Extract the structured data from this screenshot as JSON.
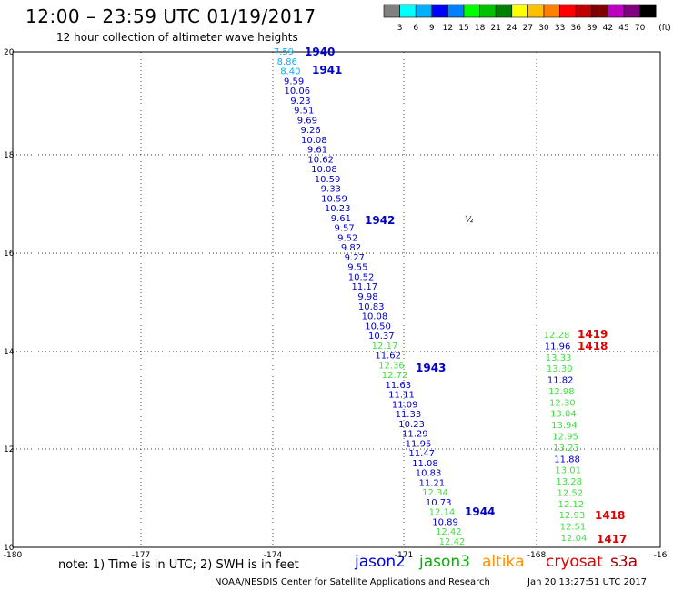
{
  "title": "12:00 – 23:59 UTC 01/19/2017",
  "subtitle": "12 hour collection of altimeter wave heights",
  "colorbar": {
    "colors": [
      "#808080",
      "#00ffff",
      "#00b0ff",
      "#0000ff",
      "#0080ff",
      "#00ff00",
      "#00c000",
      "#008000",
      "#ffff00",
      "#ffc000",
      "#ff8000",
      "#ff0000",
      "#c00000",
      "#800000",
      "#c000c0",
      "#800080",
      "#000000"
    ],
    "labels": [
      "3",
      "6",
      "9",
      "12",
      "15",
      "18",
      "21",
      "24",
      "27",
      "30",
      "33",
      "36",
      "39",
      "42",
      "45",
      "70"
    ],
    "unit": "(ft)"
  },
  "axes": {
    "x_ticks": [
      "-180",
      "-177",
      "-174",
      "-171",
      "-168",
      "-16"
    ],
    "y_ticks": [
      "20",
      "18",
      "16",
      "14",
      "12",
      "10"
    ]
  },
  "map_data": {
    "island_label": "½",
    "tracks": [
      {
        "color": "#00b0ff",
        "values": [
          "7.59",
          "8.86",
          "8.40"
        ]
      },
      {
        "color": "#0000c8",
        "values": [
          "9.59",
          "10.06",
          "9.23",
          "9.51",
          "9.69",
          "9.26",
          "10.08",
          "9.61",
          "10.62",
          "10.08",
          "10.59",
          "9.33",
          "10.59",
          "10.23",
          "9.61",
          "9.57",
          "9.52",
          "9.82",
          "9.27",
          "9.55",
          "10.52",
          "11.17",
          "9.98",
          "10.83",
          "10.08",
          "10.50",
          "10.37"
        ]
      },
      {
        "color": "#40e040",
        "values": [
          "12.17"
        ]
      },
      {
        "color": "#0000c8",
        "values": [
          "11.62"
        ]
      },
      {
        "color": "#40e040",
        "values": [
          "12.36",
          "12.72"
        ]
      },
      {
        "color": "#0000c8",
        "values": [
          "11.63",
          "11.11",
          "11.09",
          "11.33",
          "10.23",
          "11.29",
          "11.95",
          "11.47",
          "11.08",
          "10.83",
          "11.21"
        ]
      },
      {
        "color": "#40e040",
        "values": [
          "12.34"
        ]
      },
      {
        "color": "#0000c8",
        "values": [
          "10.73"
        ]
      },
      {
        "color": "#40e040",
        "values": [
          "12.14"
        ]
      },
      {
        "color": "#0000c8",
        "values": [
          "10.89"
        ]
      },
      {
        "color": "#40e040",
        "values": [
          "12.42",
          "12.42"
        ]
      }
    ],
    "east_track": [
      {
        "value": "12.28",
        "color": "#40e040"
      },
      {
        "value": "11.96",
        "color": "#0000c8"
      },
      {
        "value": "13.33",
        "color": "#40e040"
      },
      {
        "value": "13.30",
        "color": "#40e040"
      },
      {
        "value": "11.82",
        "color": "#0000c8"
      },
      {
        "value": "12.98",
        "color": "#40e040"
      },
      {
        "value": "12.30",
        "color": "#40e040"
      },
      {
        "value": "13.04",
        "color": "#40e040"
      },
      {
        "value": "13.94",
        "color": "#40e040"
      },
      {
        "value": "12.95",
        "color": "#40e040"
      },
      {
        "value": "13.23",
        "color": "#40e040"
      },
      {
        "value": "11.88",
        "color": "#0000c8"
      },
      {
        "value": "13.01",
        "color": "#40e040"
      },
      {
        "value": "13.28",
        "color": "#40e040"
      },
      {
        "value": "12.52",
        "color": "#40e040"
      },
      {
        "value": "12.12",
        "color": "#40e040"
      },
      {
        "value": "12.93",
        "color": "#40e040"
      },
      {
        "value": "12.51",
        "color": "#40e040"
      },
      {
        "value": "12.04",
        "color": "#40e040"
      }
    ],
    "pass_labels": [
      {
        "text": "1940",
        "color": "#0000c8"
      },
      {
        "text": "1941",
        "color": "#0000c8"
      },
      {
        "text": "1942",
        "color": "#0000c8"
      },
      {
        "text": "1943",
        "color": "#0000c8"
      },
      {
        "text": "1944",
        "color": "#0000c8"
      },
      {
        "text": "1419",
        "color": "#e00000"
      },
      {
        "text": "1418",
        "color": "#e00000"
      },
      {
        "text": "1418",
        "color": "#e00000"
      },
      {
        "text": "1417",
        "color": "#e00000"
      }
    ]
  },
  "note": "note:  1) Time is in UTC;  2) SWH is in feet",
  "satellites": [
    {
      "name": "jason2",
      "color": "#0000e0"
    },
    {
      "name": "jason3",
      "color": "#00b000"
    },
    {
      "name": "altika",
      "color": "#ff9000"
    },
    {
      "name": "cryosat",
      "color": "#e00000"
    },
    {
      "name": "s3a",
      "color": "#a00000"
    }
  ],
  "footer": "NOAA/NESDIS Center for Satellite Applications and Research",
  "timestamp": "Jan 20 13:27:51 UTC 2017"
}
